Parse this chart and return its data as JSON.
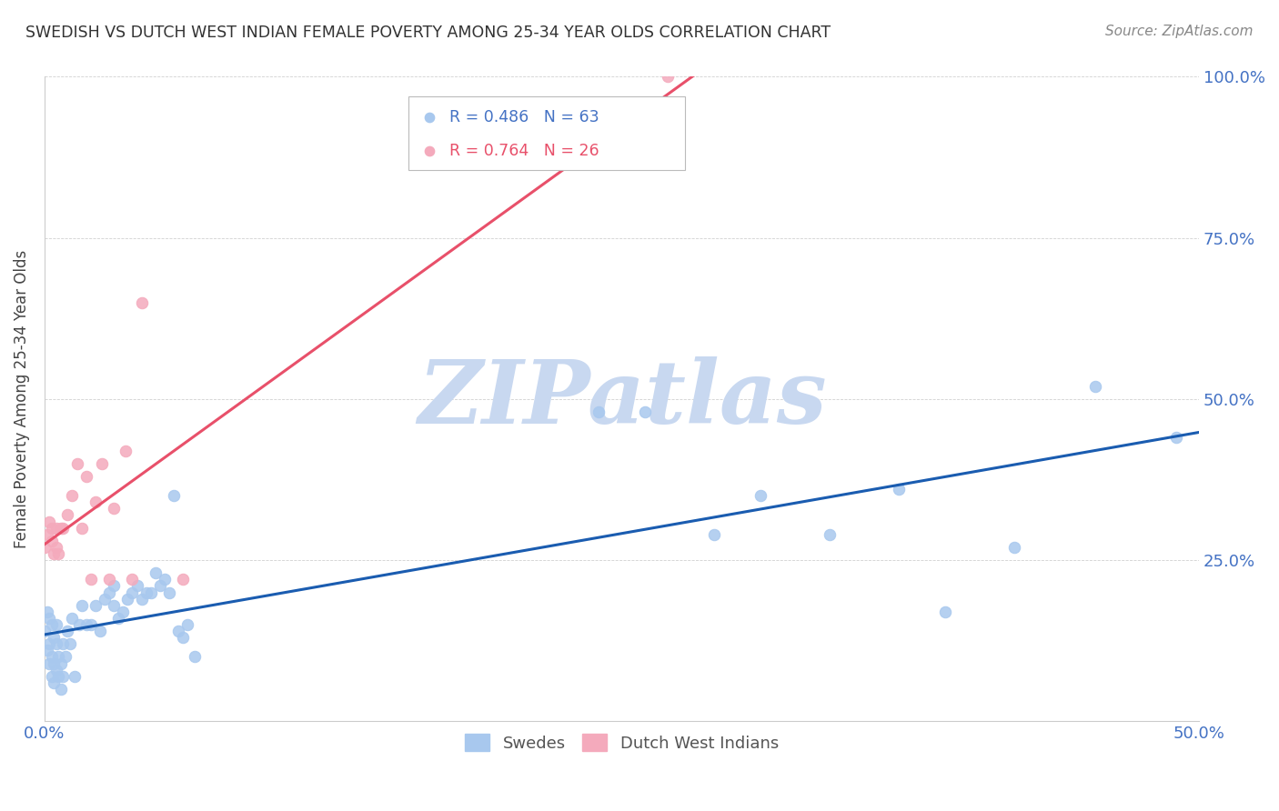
{
  "title": "SWEDISH VS DUTCH WEST INDIAN FEMALE POVERTY AMONG 25-34 YEAR OLDS CORRELATION CHART",
  "source": "Source: ZipAtlas.com",
  "ylabel": "Female Poverty Among 25-34 Year Olds",
  "xlim": [
    0.0,
    0.5
  ],
  "ylim": [
    0.0,
    1.0
  ],
  "xtick_positions": [
    0.0,
    0.1,
    0.2,
    0.3,
    0.4,
    0.5
  ],
  "ytick_positions": [
    0.0,
    0.25,
    0.5,
    0.75,
    1.0
  ],
  "xticklabels": [
    "0.0%",
    "",
    "",
    "",
    "",
    "50.0%"
  ],
  "yticklabels_right": [
    "",
    "25.0%",
    "50.0%",
    "75.0%",
    "100.0%"
  ],
  "blue_scatter_color": "#A8C8EE",
  "pink_scatter_color": "#F4AABC",
  "blue_line_color": "#1A5CB0",
  "pink_line_color": "#E8506A",
  "tick_label_color": "#4472C4",
  "legend_blue_text_color": "#4472C4",
  "legend_pink_text_color": "#E8506A",
  "watermark": "ZIPatlas",
  "watermark_color": "#C8D8F0",
  "R_blue": 0.486,
  "N_blue": 63,
  "R_pink": 0.764,
  "N_pink": 26,
  "swedes_x": [
    0.0,
    0.001,
    0.001,
    0.002,
    0.002,
    0.002,
    0.003,
    0.003,
    0.003,
    0.004,
    0.004,
    0.004,
    0.005,
    0.005,
    0.005,
    0.006,
    0.006,
    0.007,
    0.007,
    0.008,
    0.008,
    0.009,
    0.01,
    0.011,
    0.012,
    0.013,
    0.015,
    0.016,
    0.018,
    0.02,
    0.022,
    0.024,
    0.026,
    0.028,
    0.03,
    0.03,
    0.032,
    0.034,
    0.036,
    0.038,
    0.04,
    0.042,
    0.044,
    0.046,
    0.048,
    0.05,
    0.052,
    0.054,
    0.056,
    0.058,
    0.06,
    0.062,
    0.065,
    0.24,
    0.26,
    0.29,
    0.31,
    0.34,
    0.37,
    0.39,
    0.42,
    0.455,
    0.49
  ],
  "swedes_y": [
    0.14,
    0.11,
    0.17,
    0.09,
    0.12,
    0.16,
    0.07,
    0.1,
    0.15,
    0.06,
    0.09,
    0.13,
    0.08,
    0.12,
    0.15,
    0.07,
    0.1,
    0.05,
    0.09,
    0.07,
    0.12,
    0.1,
    0.14,
    0.12,
    0.16,
    0.07,
    0.15,
    0.18,
    0.15,
    0.15,
    0.18,
    0.14,
    0.19,
    0.2,
    0.18,
    0.21,
    0.16,
    0.17,
    0.19,
    0.2,
    0.21,
    0.19,
    0.2,
    0.2,
    0.23,
    0.21,
    0.22,
    0.2,
    0.35,
    0.14,
    0.13,
    0.15,
    0.1,
    0.48,
    0.48,
    0.29,
    0.35,
    0.29,
    0.36,
    0.17,
    0.27,
    0.52,
    0.44
  ],
  "dutch_x": [
    0.0,
    0.001,
    0.002,
    0.003,
    0.003,
    0.004,
    0.005,
    0.005,
    0.006,
    0.007,
    0.008,
    0.01,
    0.012,
    0.014,
    0.016,
    0.018,
    0.02,
    0.022,
    0.025,
    0.028,
    0.03,
    0.035,
    0.038,
    0.042,
    0.06,
    0.27
  ],
  "dutch_y": [
    0.27,
    0.29,
    0.31,
    0.28,
    0.3,
    0.26,
    0.27,
    0.3,
    0.26,
    0.3,
    0.3,
    0.32,
    0.35,
    0.4,
    0.3,
    0.38,
    0.22,
    0.34,
    0.4,
    0.22,
    0.33,
    0.42,
    0.22,
    0.65,
    0.22,
    1.0
  ]
}
